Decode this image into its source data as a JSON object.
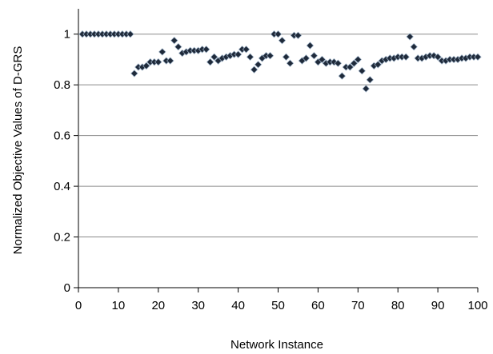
{
  "chart_data": {
    "type": "scatter",
    "title": "",
    "xlabel": "Network Instance",
    "ylabel": "Normalized Objective Values of D-GRS",
    "xlim": [
      0,
      100
    ],
    "ylim": [
      0,
      1.1
    ],
    "xticks": [
      "0",
      "10",
      "20",
      "30",
      "40",
      "50",
      "60",
      "70",
      "80",
      "90",
      "100"
    ],
    "yticks": [
      "0",
      "0.2",
      "0.4",
      "0.6",
      "0.8",
      "1"
    ],
    "grid": "horizontal",
    "legend": "none",
    "marker_color": "#1f2a3a",
    "series": [
      {
        "x": [
          1,
          2,
          3,
          4,
          5,
          6,
          7,
          8,
          9,
          10,
          11,
          12,
          13,
          14,
          15,
          16,
          17,
          18,
          19,
          20,
          21,
          22,
          23,
          24,
          25,
          26,
          27,
          28,
          29,
          30,
          31,
          32,
          33,
          34,
          35,
          36,
          37,
          38,
          39,
          40,
          41,
          42,
          43,
          44,
          45,
          46,
          47,
          48,
          49,
          50,
          51,
          52,
          53,
          54,
          55,
          56,
          57,
          58,
          59,
          60,
          61,
          62,
          63,
          64,
          65,
          66,
          67,
          68,
          69,
          70,
          71,
          72,
          73,
          74,
          75,
          76,
          77,
          78,
          79,
          80,
          81,
          82,
          83,
          84,
          85,
          86,
          87,
          88,
          89,
          90,
          91,
          92,
          93,
          94,
          95,
          96,
          97,
          98,
          99,
          100
        ],
        "y": [
          1,
          1,
          1,
          1,
          1,
          1,
          1,
          1,
          1,
          1,
          1,
          1,
          1,
          0.845,
          0.87,
          0.87,
          0.875,
          0.89,
          0.89,
          0.89,
          0.93,
          0.895,
          0.895,
          0.975,
          0.95,
          0.925,
          0.93,
          0.935,
          0.935,
          0.935,
          0.94,
          0.94,
          0.89,
          0.91,
          0.895,
          0.905,
          0.91,
          0.915,
          0.92,
          0.92,
          0.94,
          0.94,
          0.91,
          0.86,
          0.88,
          0.905,
          0.915,
          0.915,
          1,
          1,
          0.975,
          0.91,
          0.885,
          0.995,
          0.995,
          0.895,
          0.905,
          0.955,
          0.915,
          0.89,
          0.9,
          0.885,
          0.89,
          0.89,
          0.885,
          0.835,
          0.87,
          0.87,
          0.885,
          0.9,
          0.855,
          0.785,
          0.82,
          0.875,
          0.88,
          0.895,
          0.9,
          0.905,
          0.905,
          0.91,
          0.91,
          0.91,
          0.99,
          0.95,
          0.905,
          0.905,
          0.91,
          0.915,
          0.915,
          0.91,
          0.895,
          0.895,
          0.9,
          0.9,
          0.9,
          0.905,
          0.905,
          0.91,
          0.91,
          0.91
        ]
      }
    ]
  }
}
